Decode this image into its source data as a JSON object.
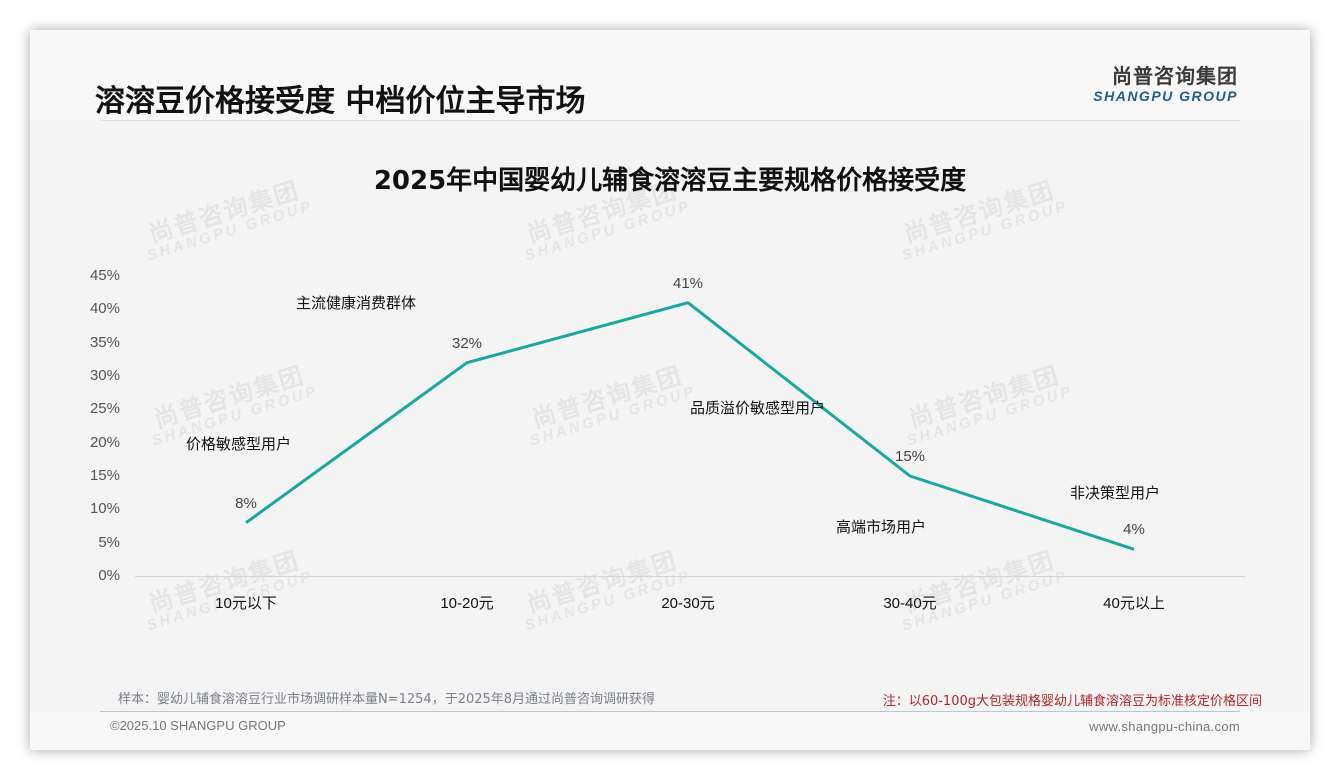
{
  "header": {
    "title": "溶溶豆价格接受度 中档价位主导市场",
    "logo_cn": "尚普咨询集团",
    "logo_en": "SHANGPU GROUP"
  },
  "watermark": {
    "cn": "尚普咨询集团",
    "en": "SHANGPU GROUP"
  },
  "chart_data": {
    "type": "line",
    "title": "2025年中国婴幼儿辅食溶溶豆主要规格价格接受度",
    "categories": [
      "10元以下",
      "10-20元",
      "20-30元",
      "30-40元",
      "40元以上"
    ],
    "series": [
      {
        "name": "价格接受度",
        "values": [
          8,
          32,
          41,
          15,
          4
        ],
        "color": "#1aa7a1"
      }
    ],
    "data_labels": [
      "8%",
      "32%",
      "41%",
      "15%",
      "4%"
    ],
    "y_ticks": [
      "0%",
      "5%",
      "10%",
      "15%",
      "20%",
      "25%",
      "30%",
      "35%",
      "40%",
      "45%"
    ],
    "ylim": [
      0,
      45
    ],
    "xlabel": "",
    "ylabel": "",
    "grid": false,
    "legend": "none",
    "annotations": [
      {
        "text": "价格敏感型用户",
        "near": "10元以下"
      },
      {
        "text": "主流健康消费群体",
        "near": "10-20元"
      },
      {
        "text": "品质溢价敏感型用户",
        "near": "20-30元"
      },
      {
        "text": "高端市场用户",
        "near": "30-40元"
      },
      {
        "text": "非决策型用户",
        "near": "40元以上"
      }
    ]
  },
  "footer": {
    "sample_note": "样本：婴幼儿辅食溶溶豆行业市场调研样本量N=1254，于2025年8月通过尚普咨询调研获得",
    "price_note": "注：以60-100g大包装规格婴幼儿辅食溶溶豆为标准核定价格区间",
    "copyright": "©2025.10 SHANGPU GROUP",
    "website": "www.shangpu-china.com"
  }
}
